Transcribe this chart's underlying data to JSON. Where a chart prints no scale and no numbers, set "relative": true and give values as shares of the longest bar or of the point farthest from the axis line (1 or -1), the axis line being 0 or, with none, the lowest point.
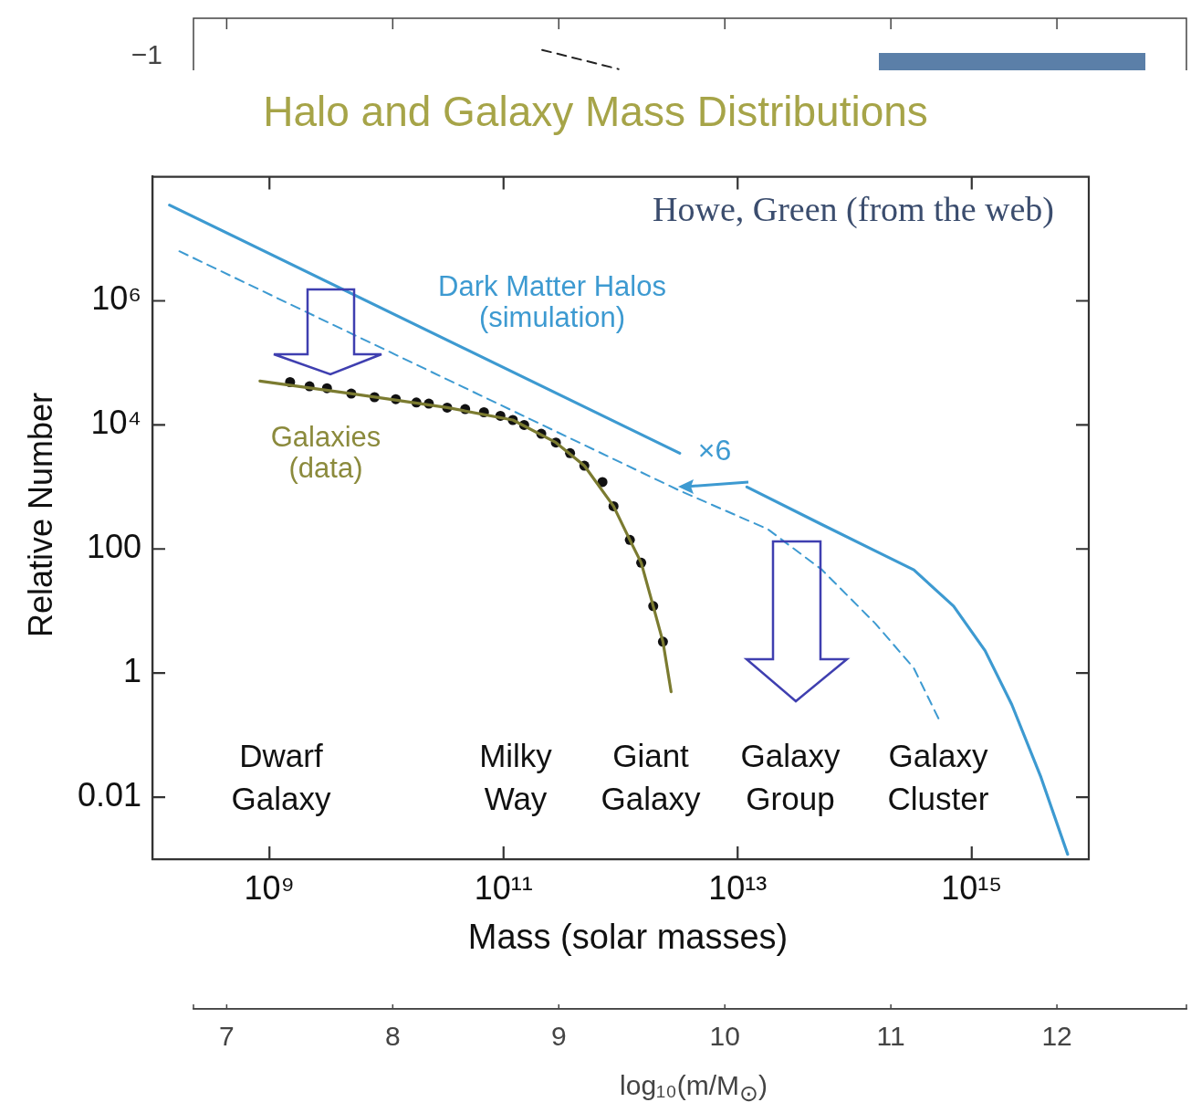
{
  "chart_data": [
    {
      "type": "line",
      "title": "Halo and Galaxy Mass Distributions",
      "xlabel": "Mass (solar masses)",
      "ylabel": "Relative Number",
      "log": "xy",
      "xlim": [
        100000000.0,
        1e+16
      ],
      "ylim": [
        0.001,
        100000000.0
      ],
      "xticks": [
        {
          "value": 1000000000.0,
          "label": "10⁹"
        },
        {
          "value": 100000000000.0,
          "label": "10¹¹"
        },
        {
          "value": 10000000000000.0,
          "label": "10¹³"
        },
        {
          "value": 1000000000000000.0,
          "label": "10¹⁵"
        }
      ],
      "yticks": [
        {
          "value": 0.01,
          "label": "0.01"
        },
        {
          "value": 1,
          "label": "1"
        },
        {
          "value": 100,
          "label": "100"
        },
        {
          "value": 10000.0,
          "label": "10⁴"
        },
        {
          "value": 1000000.0,
          "label": "10⁶"
        }
      ],
      "grid": false,
      "legend": false,
      "line_style": "solid",
      "marker": "none",
      "annotations": [
        "Howe, Green (from the web)",
        "Dark Matter Halos\n(simulation)",
        "Galaxies\n(data)",
        "×6",
        "Dwarf\nGalaxy",
        "Milky\nWay",
        "Giant\nGalaxy",
        "Galaxy\nGroup",
        "Galaxy\nCluster"
      ],
      "series": [
        {
          "color": "#3d9ad1",
          "x": [
            140000000.0,
            3200000000000.0,
            6000000000000.0,
            12000000000000.0,
            52000000000000.0,
            150000000000000.0,
            320000000000000.0,
            700000000000000.0,
            1300000000000000.0,
            2200000000000000.0,
            3900000000000000.0,
            6600000000000000.0
          ],
          "values": [
            35000000.0,
            3500,
            null,
            1000,
            250,
            93,
            46,
            12,
            2.3,
            0.31,
            0.021,
            0.0012
          ]
        },
        {
          "color": "#3d9ad1",
          "line_style": "dashed",
          "x": [
            170000000.0,
            3200000000000.0,
            18000000000000.0,
            52000000000000.0,
            150000000000000.0,
            320000000000000.0,
            540000000000000.0
          ],
          "values": [
            6300000.0,
            870,
            210,
            47,
            6.3,
            1.2,
            0.16
          ]
        },
        {
          "color": "#7b7b30",
          "x": [
            830000000.0,
            5000000000.0,
            33000000000.0,
            120000000000.0,
            280000000000.0,
            490000000000.0,
            870000000000.0,
            1200000000000.0,
            1500000000000.0,
            1900000000000.0,
            2300000000000.0,
            2700000000000.0
          ],
          "values": [
            51000.0,
            32000.0,
            19000.0,
            12000.0,
            5200,
            2200,
            490,
            140,
            60,
            12,
            3.2,
            0.5
          ]
        },
        {
          "type": "scatter",
          "color": "#111111",
          "marker": "circle",
          "x": [
            1500000000.0,
            2200000000.0,
            3100000000.0,
            5000000000.0,
            7900000000.0,
            12000000000.0,
            18000000000.0,
            23000000000.0,
            33000000000.0,
            47000000000.0,
            68000000000.0,
            94000000000.0,
            120000000000.0,
            150000000000.0,
            210000000000.0,
            280000000000.0,
            370000000000.0,
            490000000000.0,
            700000000000.0,
            870000000000.0,
            1200000000000.0,
            1500000000000.0,
            1900000000000.0,
            2300000000000.0
          ],
          "values": [
            49000.0,
            42000.0,
            39000.0,
            32000.0,
            28000.0,
            26000.0,
            23000.0,
            22000.0,
            19000.0,
            18000.0,
            16000.0,
            14000.0,
            12000.0,
            10000.0,
            7200,
            5200,
            3500,
            2200,
            1200,
            490,
            140,
            60,
            12,
            3.2
          ]
        }
      ]
    },
    {
      "type": "line",
      "xlabel": "log₁₀(m/M$_{⊙}$)",
      "xlim": [
        6.8,
        12.78
      ],
      "xticks": [
        7,
        8,
        9,
        10,
        11,
        12
      ],
      "relative": true,
      "annotations": [
        "−1"
      ],
      "grid": false,
      "legend": false,
      "line_style": "dashed",
      "marker": "none",
      "series": [
        {
          "color": "#222222",
          "x": [
            8.9,
            9.36
          ],
          "values": [
            1,
            0.98
          ]
        }
      ]
    }
  ]
}
